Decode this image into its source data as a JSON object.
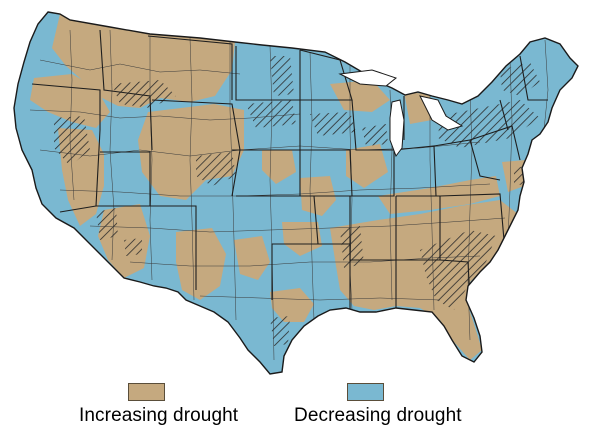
{
  "legend": {
    "increasing": {
      "label": "Increasing drought",
      "color": "#c5a97f"
    },
    "decreasing": {
      "label": "Decreasing drought",
      "color": "#7ab8d1"
    }
  },
  "map": {
    "boundary_color": "#3a3a3a",
    "hatch_color": "#2a2a2a"
  }
}
